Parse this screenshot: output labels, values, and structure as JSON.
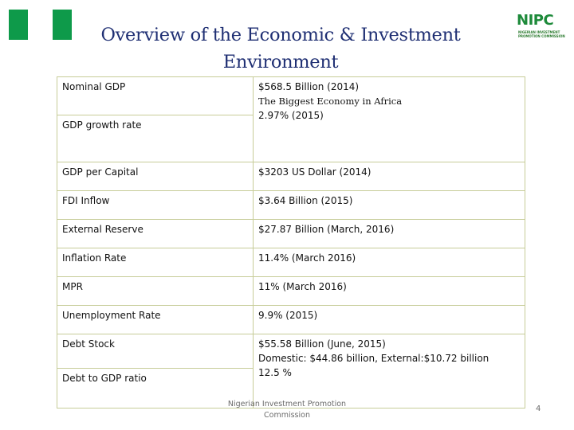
{
  "slide": {
    "title_line1": "Overview of the Economic & Investment",
    "title_line2": "Environment"
  },
  "logo": {
    "text": "NIPC",
    "sub_line1": "NIGERIAN INVESTMENT",
    "sub_line2": "PROMOTION COMMISSION"
  },
  "table": {
    "rows": [
      {
        "label": "Nominal GDP",
        "value": "$568.5 Billion  (2014)",
        "value2": "The Biggest Economy in Africa"
      },
      {
        "label": "GDP growth rate",
        "value": "2.97% (2015)"
      },
      {
        "label": "GDP per Capital",
        "value": "$3203 US Dollar (2014)"
      },
      {
        "label": "FDI Inflow",
        "value": "$3.64 Billion (2015)"
      },
      {
        "label": "External Reserve",
        "value": "$27.87 Billion (March, 2016)"
      },
      {
        "label": "Inflation Rate",
        "value": "11.4% (March 2016)"
      },
      {
        "label": "MPR",
        "value": "11% (March 2016)"
      },
      {
        "label": "Unemployment Rate",
        "value": "9.9% (2015)"
      },
      {
        "label": "Debt Stock",
        "value": "$55.58 Billion (June, 2015)",
        "value2": "Domestic: $44.86 billion, External:$10.72 billion"
      },
      {
        "label": "Debt to GDP ratio",
        "value": "12.5 %"
      }
    ]
  },
  "footer": {
    "line1": "Nigerian Investment Promotion",
    "line2": "Commission",
    "page_number": "4"
  }
}
